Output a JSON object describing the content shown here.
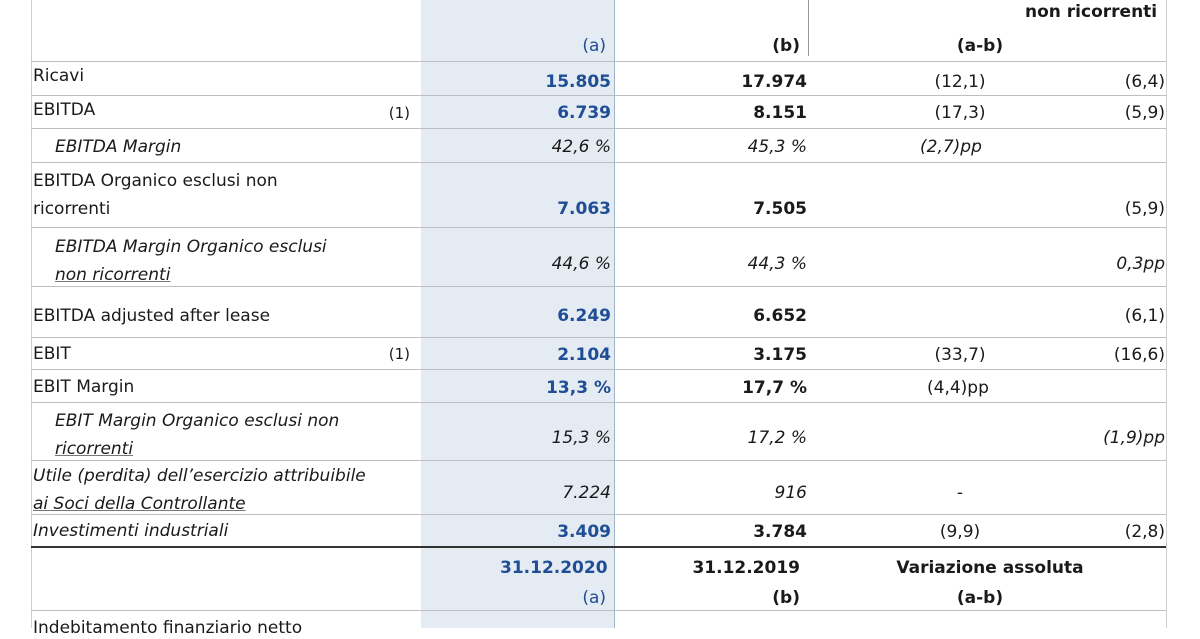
{
  "header_top": {
    "d_header": "non ricorrenti"
  },
  "col_headers": {
    "a": "(a)",
    "b": "(b)",
    "ab": "(a-b)"
  },
  "rows": [
    {
      "label": "Ricavi",
      "a": "15.805",
      "b": "17.974",
      "ab": "(12,1)",
      "d": "(6,4)"
    },
    {
      "label": "EBITDA",
      "note": "(1)",
      "a": "6.739",
      "b": "8.151",
      "ab": "(17,3)",
      "d": "(5,9)"
    },
    {
      "label": "EBITDA Margin",
      "a": "42,6 %",
      "b": "45,3 %",
      "ab": "(2,7)pp"
    },
    {
      "label1": "EBITDA Organico esclusi non",
      "label2": "ricorrenti",
      "a": "7.063",
      "b": "7.505",
      "d": "(5,9)"
    },
    {
      "label1": "EBITDA Margin Organico esclusi",
      "label2": "non ricorrenti",
      "a": "44,6 %",
      "b": "44,3 %",
      "d": "0,3pp"
    },
    {
      "label": "EBITDA adjusted after lease",
      "a": "6.249",
      "b": "6.652",
      "d": "(6,1)"
    },
    {
      "label": "EBIT",
      "note": "(1)",
      "a": "2.104",
      "b": "3.175",
      "ab": "(33,7)",
      "d": "(16,6)"
    },
    {
      "label": "EBIT Margin",
      "a": "13,3 %",
      "b": "17,7 %",
      "ab": "(4,4)pp"
    },
    {
      "label1": "EBIT Margin Organico esclusi non",
      "label2": "ricorrenti",
      "a": "15,3 %",
      "b": "17,2 %",
      "d": "(1,9)pp"
    },
    {
      "label1": "Utile (perdita) dell’esercizio attribuibile",
      "label2": "ai Soci della Controllante",
      "a": "7.224",
      "b": "916",
      "ab": "-"
    },
    {
      "label": "Investimenti industriali",
      "a": "3.409",
      "b": "3.784",
      "ab": "(9,9)",
      "d": "(2,8)"
    }
  ],
  "bottom_header": {
    "a_date": "31.12.2020",
    "b_date": "31.12.2019",
    "variation": "Variazione assoluta",
    "a": "(a)",
    "b": "(b)",
    "ab": "(a-b)"
  },
  "last_row_label": "Indebitamento finanziario netto"
}
